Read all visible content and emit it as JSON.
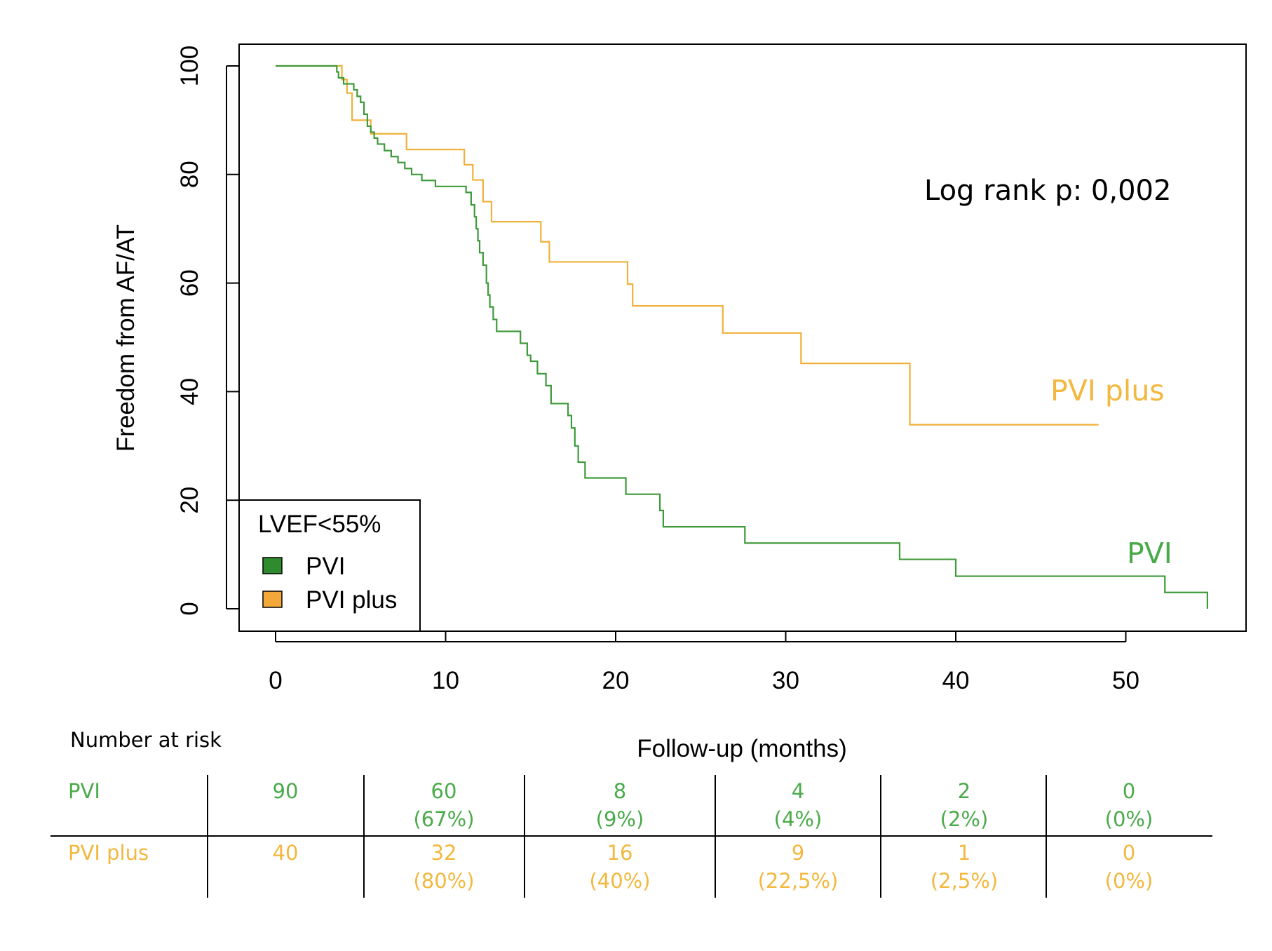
{
  "colors": {
    "pvi": "#3e9a3a",
    "pvi_plus": "#f0b13a",
    "pvi_text": "#4aaa4a",
    "pvi_plus_text": "#f2b83f",
    "pvi_swatch": "#2e8b2e",
    "pvi_plus_swatch": "#f4a83a"
  },
  "chart_data": {
    "type": "line",
    "subtype": "kaplan-meier step",
    "xlabel": "Follow-up (months)",
    "ylabel": "Freedom from AF/AT",
    "xlim": [
      0,
      55
    ],
    "ylim": [
      0,
      100
    ],
    "xticks": [
      0,
      10,
      20,
      30,
      40,
      50
    ],
    "yticks": [
      0,
      20,
      40,
      60,
      80,
      100
    ],
    "grid": false,
    "legend": {
      "title": "LVEF<55%",
      "position": "bottom-left",
      "entries": [
        "PVI",
        "PVI plus"
      ]
    },
    "annotation": "Log rank p: 0,002",
    "series": [
      {
        "name": "PVI",
        "x": [
          0,
          3.5,
          3.6,
          3.7,
          3.8,
          4.0,
          4.6,
          4.8,
          5.0,
          5.2,
          5.4,
          5.6,
          5.8,
          6.0,
          6.4,
          6.8,
          7.2,
          7.6,
          8.0,
          8.6,
          9.4,
          11.2,
          11.5,
          11.7,
          11.8,
          11.9,
          12.0,
          12.2,
          12.4,
          12.5,
          12.6,
          12.8,
          13.0,
          13.5,
          14.4,
          14.8,
          15.0,
          15.4,
          15.9,
          16.2,
          16.5,
          17.2,
          17.4,
          17.6,
          17.8,
          18.2,
          20.6,
          22.6,
          22.8,
          27.6,
          36.7,
          40.0,
          52.3,
          54.8
        ],
        "y": [
          100,
          100,
          98.9,
          97.8,
          97.8,
          96.7,
          95.6,
          94.4,
          93.3,
          91.1,
          88.9,
          87.8,
          86.7,
          85.6,
          84.4,
          83.3,
          82.2,
          81.1,
          80.0,
          78.9,
          77.8,
          76.7,
          74.4,
          72.2,
          70.0,
          67.8,
          65.6,
          63.3,
          60.0,
          57.8,
          55.6,
          53.3,
          51.1,
          51.1,
          48.9,
          46.7,
          45.6,
          43.3,
          41.1,
          37.8,
          37.8,
          35.6,
          33.3,
          30.0,
          27.0,
          24.1,
          21.1,
          18.1,
          15.1,
          12.1,
          9.1,
          6.0,
          3.0,
          0
        ],
        "end_x": 54.8,
        "label": "PVI"
      },
      {
        "name": "PVI plus",
        "x": [
          0,
          3.7,
          3.9,
          4.2,
          4.5,
          5.6,
          7.7,
          11.1,
          11.6,
          12.2,
          12.7,
          13.2,
          15.6,
          16.1,
          20.7,
          21.0,
          26.3,
          30.9,
          37.3
        ],
        "y": [
          100,
          100,
          97.5,
          95.0,
          90.0,
          87.5,
          84.6,
          81.8,
          79.0,
          75.0,
          71.3,
          71.3,
          67.6,
          63.9,
          59.8,
          55.8,
          50.8,
          45.2,
          33.9
        ],
        "end_x": 48.4,
        "label": "PVI plus"
      }
    ],
    "risk_table": {
      "title": "Number at risk",
      "rows": [
        {
          "label": "PVI",
          "counts": [
            "90",
            "60",
            "8",
            "4",
            "2",
            "0"
          ],
          "percents": [
            "",
            "(67%)",
            "(9%)",
            "(4%)",
            "(2%)",
            "(0%)"
          ]
        },
        {
          "label": "PVI plus",
          "counts": [
            "40",
            "32",
            "16",
            "9",
            "1",
            "0"
          ],
          "percents": [
            "",
            "(80%)",
            "(40%)",
            "(22,5%)",
            "(2,5%)",
            "(0%)"
          ]
        }
      ]
    }
  }
}
